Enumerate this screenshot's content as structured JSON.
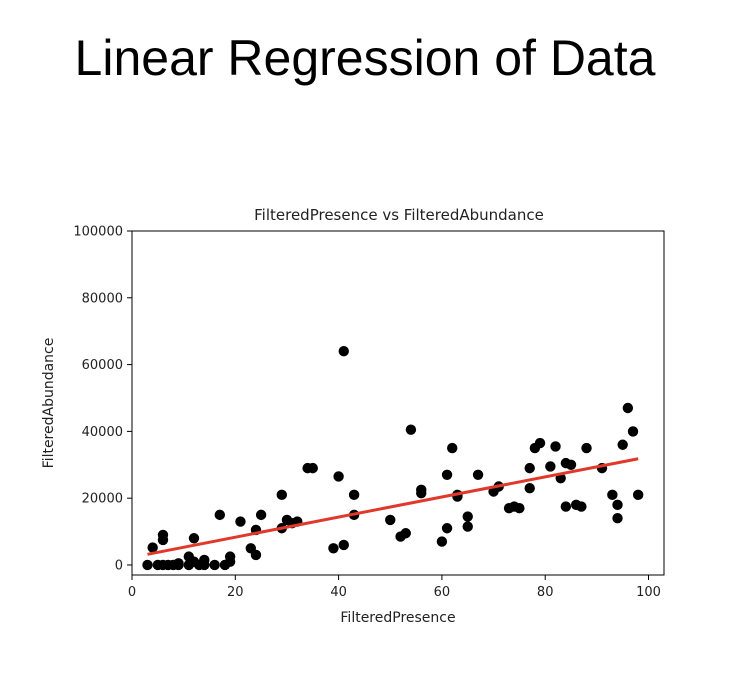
{
  "slide": {
    "title": "Linear Regression of Data"
  },
  "chart_data": {
    "type": "scatter",
    "title": "FilteredPresence vs FilteredAbundance",
    "xlabel": "FilteredPresence",
    "ylabel": "FilteredAbundance",
    "xlim": [
      0,
      103
    ],
    "ylim": [
      -3000,
      100000
    ],
    "xticks": [
      0,
      20,
      40,
      60,
      80,
      100
    ],
    "yticks": [
      0,
      20000,
      40000,
      60000,
      80000,
      100000
    ],
    "grid": false,
    "legend": "none",
    "series": [
      {
        "type": "scatter",
        "color": "#000000",
        "points": [
          [
            3,
            0
          ],
          [
            4,
            5200
          ],
          [
            5,
            0
          ],
          [
            6,
            0
          ],
          [
            6,
            7500
          ],
          [
            6,
            9000
          ],
          [
            7,
            0
          ],
          [
            8,
            0
          ],
          [
            9,
            500
          ],
          [
            9,
            0
          ],
          [
            11,
            2500
          ],
          [
            11,
            0
          ],
          [
            12,
            8000
          ],
          [
            12,
            1000
          ],
          [
            13,
            0
          ],
          [
            14,
            0
          ],
          [
            14,
            1500
          ],
          [
            16,
            0
          ],
          [
            17,
            15000
          ],
          [
            18,
            0
          ],
          [
            19,
            1000
          ],
          [
            19,
            2500
          ],
          [
            21,
            13000
          ],
          [
            23,
            5000
          ],
          [
            24,
            3000
          ],
          [
            24,
            10500
          ],
          [
            25,
            15000
          ],
          [
            29,
            21000
          ],
          [
            29,
            11000
          ],
          [
            30,
            13500
          ],
          [
            31,
            12500
          ],
          [
            32,
            13000
          ],
          [
            34,
            29000
          ],
          [
            35,
            29000
          ],
          [
            39,
            5000
          ],
          [
            40,
            26500
          ],
          [
            41,
            64000
          ],
          [
            41,
            6000
          ],
          [
            43,
            21000
          ],
          [
            43,
            15000
          ],
          [
            50,
            13500
          ],
          [
            52,
            8500
          ],
          [
            53,
            9500
          ],
          [
            54,
            40500
          ],
          [
            56,
            21500
          ],
          [
            56,
            22500
          ],
          [
            60,
            7000
          ],
          [
            61,
            27000
          ],
          [
            61,
            11000
          ],
          [
            62,
            35000
          ],
          [
            63,
            21000
          ],
          [
            63,
            20500
          ],
          [
            65,
            14500
          ],
          [
            65,
            11500
          ],
          [
            67,
            27000
          ],
          [
            70,
            22000
          ],
          [
            71,
            23500
          ],
          [
            73,
            17000
          ],
          [
            74,
            17500
          ],
          [
            75,
            17000
          ],
          [
            77,
            29000
          ],
          [
            77,
            23000
          ],
          [
            78,
            35000
          ],
          [
            79,
            36500
          ],
          [
            81,
            29500
          ],
          [
            82,
            35500
          ],
          [
            83,
            26000
          ],
          [
            84,
            30500
          ],
          [
            84,
            17500
          ],
          [
            85,
            30000
          ],
          [
            86,
            18000
          ],
          [
            87,
            17500
          ],
          [
            88,
            35000
          ],
          [
            91,
            29000
          ],
          [
            93,
            21000
          ],
          [
            94,
            18000
          ],
          [
            94,
            14000
          ],
          [
            95,
            36000
          ],
          [
            96,
            47000
          ],
          [
            97,
            40000
          ],
          [
            98,
            21000
          ]
        ]
      },
      {
        "type": "line",
        "name": "regression",
        "color": "#e0392b",
        "points": [
          [
            3,
            3200
          ],
          [
            98,
            31800
          ]
        ]
      }
    ]
  }
}
